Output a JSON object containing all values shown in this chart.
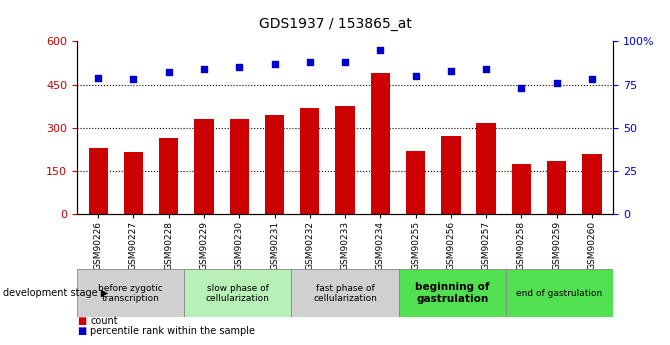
{
  "title": "GDS1937 / 153865_at",
  "samples": [
    "GSM90226",
    "GSM90227",
    "GSM90228",
    "GSM90229",
    "GSM90230",
    "GSM90231",
    "GSM90232",
    "GSM90233",
    "GSM90234",
    "GSM90255",
    "GSM90256",
    "GSM90257",
    "GSM90258",
    "GSM90259",
    "GSM90260"
  ],
  "counts": [
    230,
    215,
    265,
    330,
    330,
    345,
    370,
    375,
    490,
    220,
    270,
    315,
    175,
    185,
    210
  ],
  "percentiles": [
    79,
    78,
    82,
    84,
    85,
    87,
    88,
    88,
    95,
    80,
    83,
    84,
    73,
    76,
    78
  ],
  "ylim_left": [
    0,
    600
  ],
  "ylim_right": [
    0,
    100
  ],
  "yticks_left": [
    0,
    150,
    300,
    450,
    600
  ],
  "yticks_right": [
    0,
    25,
    50,
    75,
    100
  ],
  "ytick_labels_left": [
    "0",
    "150",
    "300",
    "450",
    "600"
  ],
  "ytick_labels_right": [
    "0",
    "25",
    "50",
    "75",
    "100%"
  ],
  "bar_color": "#cc0000",
  "dot_color": "#0000cc",
  "stage_groups": [
    {
      "label": "before zygotic\ntranscription",
      "start": 0,
      "end": 3,
      "color": "#d0d0d0"
    },
    {
      "label": "slow phase of\ncellularization",
      "start": 3,
      "end": 6,
      "color": "#b8f0b8"
    },
    {
      "label": "fast phase of\ncellularization",
      "start": 6,
      "end": 9,
      "color": "#d0d0d0"
    },
    {
      "label": "beginning of\ngastrulation",
      "start": 9,
      "end": 12,
      "color": "#50e050"
    },
    {
      "label": "end of gastrulation",
      "start": 12,
      "end": 15,
      "color": "#50e050"
    }
  ],
  "hgrid_vals": [
    150,
    300,
    450
  ],
  "bar_width": 0.55,
  "fig_width": 6.7,
  "fig_height": 3.45,
  "dpi": 100
}
